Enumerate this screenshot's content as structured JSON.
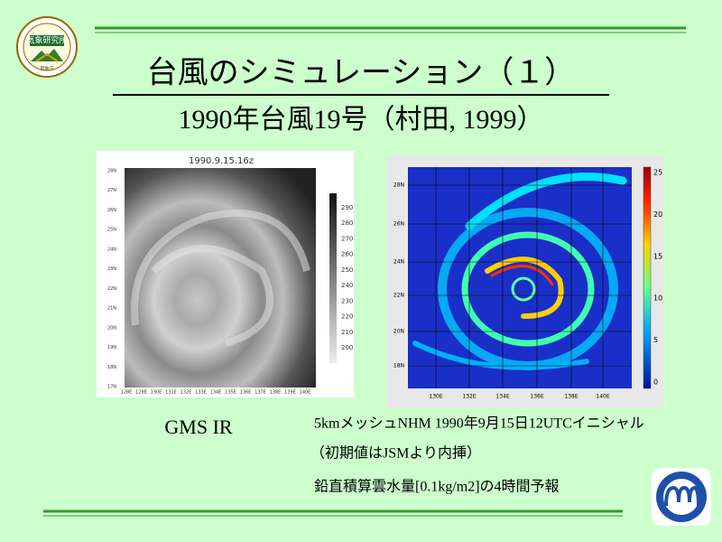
{
  "header": {
    "title": "台風のシミュレーション（１）",
    "subtitle": "1990年台風19号（村田, 1999）"
  },
  "logo": {
    "name": "気象研究所",
    "agency": "気象庁"
  },
  "figures": [
    {
      "title": "1990.9.15.16z",
      "lat_labels": [
        "28N",
        "27N",
        "26N",
        "25N",
        "24N",
        "23N",
        "22N",
        "21N",
        "20N",
        "19N",
        "18N",
        "17N"
      ],
      "lon_labels": [
        "128E",
        "129E",
        "130E",
        "131E",
        "132E",
        "133E",
        "134E",
        "135E",
        "136E",
        "137E",
        "138E",
        "139E",
        "140E"
      ],
      "colorbar_ticks": [
        290,
        280,
        270,
        260,
        250,
        240,
        230,
        220,
        210,
        200
      ],
      "caption": "GMS IR"
    },
    {
      "lat_labels": [
        "28N",
        "26N",
        "24N",
        "22N",
        "20N",
        "18N"
      ],
      "lon_labels": [
        "130E",
        "132E",
        "134E",
        "136E",
        "138E",
        "140E"
      ],
      "colorbar_ticks": [
        25,
        20,
        15,
        10,
        5,
        0
      ]
    }
  ],
  "captions": [
    "5kmメッシュNHM 1990年9月15日12UTCイニシャル",
    "（初期値はJSMより内挿）",
    "鉛直積算雲水量[0.1kg/m2]の4時間予報"
  ]
}
